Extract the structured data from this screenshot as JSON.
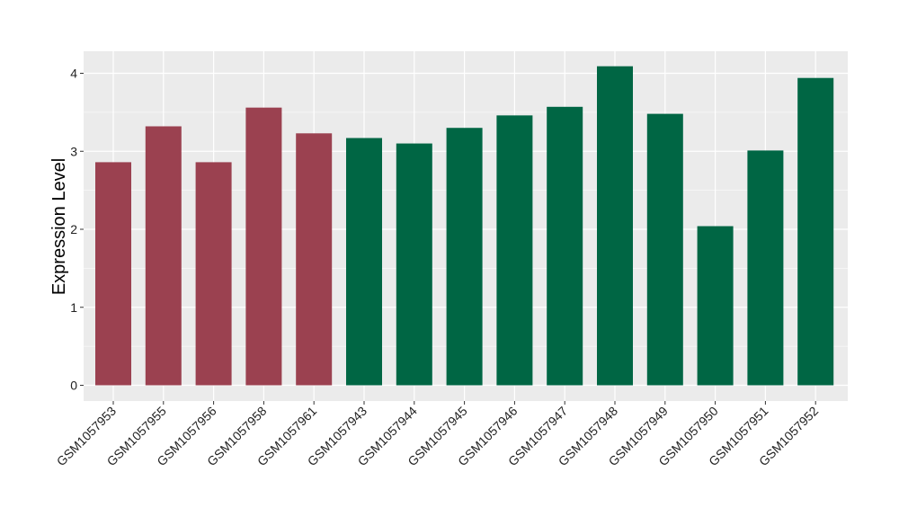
{
  "chart_data": {
    "type": "bar",
    "title": "",
    "xlabel": "",
    "ylabel": "Expression Level",
    "ylim": [
      -0.2,
      4.3
    ],
    "yticks": [
      0,
      1,
      2,
      3,
      4
    ],
    "grid": true,
    "categories": [
      "GSM1057953",
      "GSM1057955",
      "GSM1057956",
      "GSM1057958",
      "GSM1057961",
      "GSM1057943",
      "GSM1057944",
      "GSM1057945",
      "GSM1057946",
      "GSM1057947",
      "GSM1057948",
      "GSM1057949",
      "GSM1057950",
      "GSM1057951",
      "GSM1057952"
    ],
    "values": [
      2.86,
      3.32,
      2.86,
      3.56,
      3.23,
      3.17,
      3.1,
      3.3,
      3.46,
      3.57,
      4.09,
      3.48,
      2.04,
      3.01,
      3.94
    ],
    "bar_colors": [
      "#9b4150",
      "#9b4150",
      "#9b4150",
      "#9b4150",
      "#9b4150",
      "#006644",
      "#006644",
      "#006644",
      "#006644",
      "#006644",
      "#006644",
      "#006644",
      "#006644",
      "#006644",
      "#006644"
    ],
    "panel_background": "#ebebeb",
    "gridline_color": "#ffffff"
  }
}
